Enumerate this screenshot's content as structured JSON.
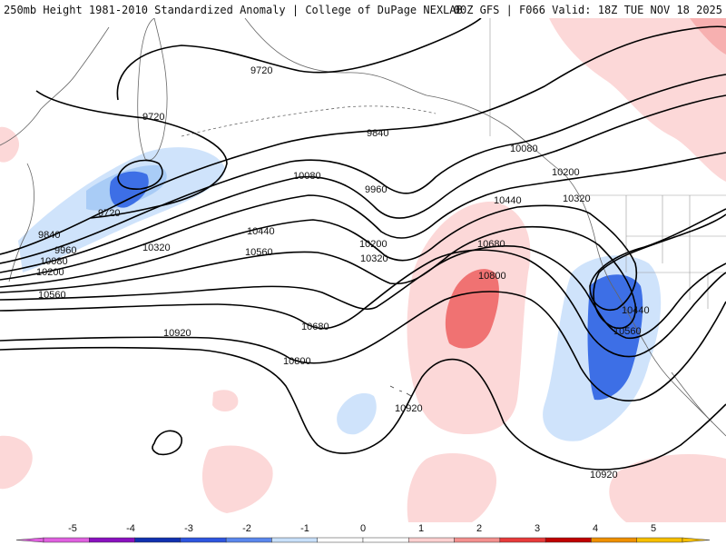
{
  "header": {
    "left_title": "250mb Height 1981-2010 Standardized Anomaly | College of DuPage NEXLAB",
    "right_title": "00Z GFS | F066 Valid: 18Z TUE NOV 18 2025"
  },
  "contour_labels": {
    "c9720_a": "9720",
    "c9720_b": "9720",
    "c9720_c": "9720",
    "c9840_a": "9840",
    "c9840_b": "9840",
    "c9960_a": "9960",
    "c9960_b": "9960",
    "c10080_a": "10080",
    "c10080_b": "10080",
    "c10080_c": "10080",
    "c10200_a": "10200",
    "c10200_b": "10200",
    "c10200_c": "10200",
    "c10320_a": "10320",
    "c10320_b": "10320",
    "c10320_c": "10320",
    "c10440_a": "10440",
    "c10440_b": "10440",
    "c10440_c": "10440",
    "c10560_a": "10560",
    "c10560_b": "10560",
    "c10560_c": "10560",
    "c10680_a": "10680",
    "c10680_b": "10680",
    "c10800_a": "10800",
    "c10800_b": "10800",
    "c10920_a": "10920",
    "c10920_b": "10920",
    "c10920_c": "10920"
  },
  "colorbar": {
    "ticks": [
      "-5",
      "-4",
      "-3",
      "-2",
      "-1",
      "0",
      "1",
      "2",
      "3",
      "4",
      "5"
    ],
    "colors": [
      "#e060e0",
      "#8a10c0",
      "#1030b0",
      "#2d55e0",
      "#5a88ee",
      "#c8e0fa",
      "#ffffff",
      "#ffffff",
      "#fcd0d0",
      "#f4908e",
      "#e83a3a",
      "#c00000",
      "#f09000",
      "#f8c000"
    ]
  }
}
